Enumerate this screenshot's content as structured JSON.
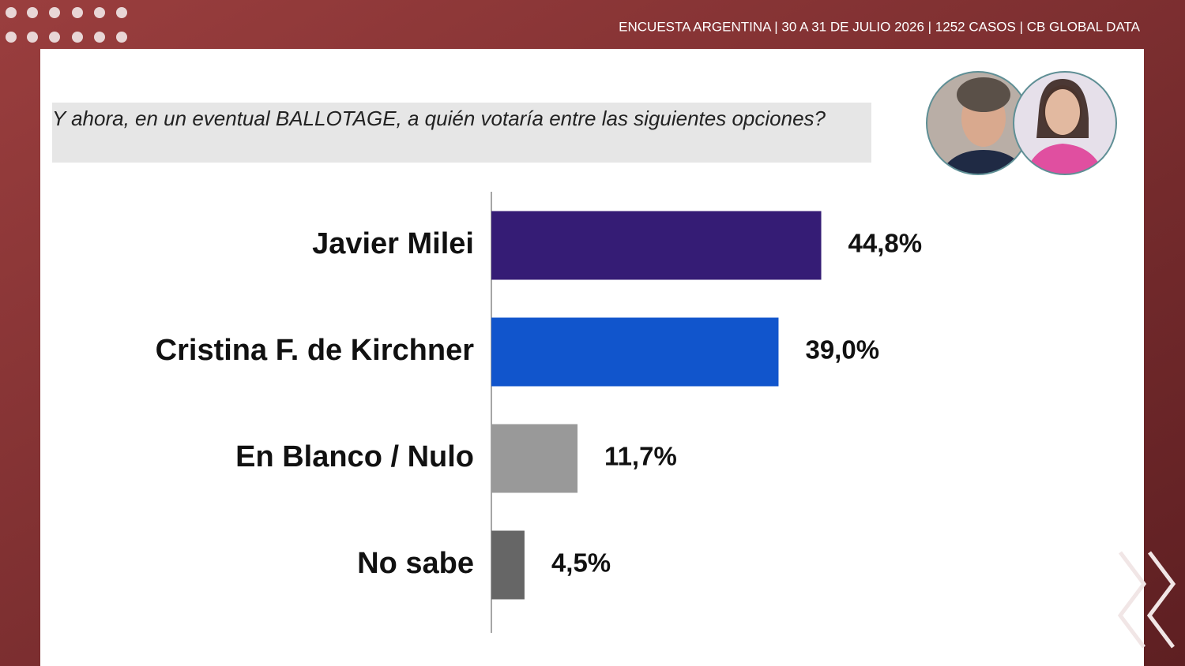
{
  "header": "ENCUESTA ARGENTINA | 30 A 31 DE JULIO 2026 | 1252 CASOS | CB GLOBAL DATA",
  "chart_data": {
    "type": "bar",
    "orientation": "horizontal",
    "title": "Y ahora, en un eventual BALLOTAGE, a quién votaría entre las siguientes opciones?",
    "categories": [
      "Javier Milei",
      "Cristina F. de Kirchner",
      "En Blanco / Nulo",
      "No sabe"
    ],
    "values": [
      44.8,
      39.0,
      11.7,
      4.5
    ],
    "value_labels": [
      "44,8%",
      "39,0%",
      "11,7%",
      "4,5%"
    ],
    "colors": [
      "#351c75",
      "#1155cc",
      "#999999",
      "#666666"
    ],
    "xlim": [
      0,
      50
    ]
  }
}
